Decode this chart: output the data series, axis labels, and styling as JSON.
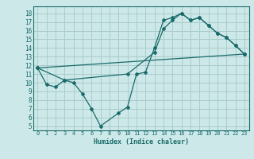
{
  "title": "",
  "xlabel": "Humidex (Indice chaleur)",
  "ylabel": "",
  "bg_color": "#cde8e8",
  "grid_color": "#aacccc",
  "line_color": "#1a6b6b",
  "xlim": [
    -0.5,
    23.5
  ],
  "ylim": [
    4.5,
    18.8
  ],
  "xticks": [
    0,
    1,
    2,
    3,
    4,
    5,
    6,
    7,
    8,
    9,
    10,
    11,
    12,
    13,
    14,
    15,
    16,
    17,
    18,
    19,
    20,
    21,
    22,
    23
  ],
  "yticks": [
    5,
    6,
    7,
    8,
    9,
    10,
    11,
    12,
    13,
    14,
    15,
    16,
    17,
    18
  ],
  "series": [
    {
      "x": [
        0,
        1,
        2,
        3,
        4,
        5,
        6,
        7,
        9,
        10,
        11,
        12,
        13,
        14,
        15,
        16,
        17,
        18,
        19,
        20,
        21,
        22,
        23
      ],
      "y": [
        11.7,
        9.8,
        9.5,
        10.3,
        10.0,
        8.7,
        7.0,
        5.0,
        6.5,
        7.2,
        11.0,
        11.2,
        14.0,
        17.2,
        17.5,
        18.0,
        17.2,
        17.5,
        16.6,
        15.7,
        15.2,
        14.3,
        13.3
      ]
    },
    {
      "x": [
        0,
        3,
        10,
        13,
        14,
        15,
        16,
        17,
        18,
        19,
        20,
        21,
        22,
        23
      ],
      "y": [
        11.7,
        10.3,
        11.0,
        13.5,
        16.2,
        17.2,
        18.0,
        17.2,
        17.5,
        16.6,
        15.7,
        15.2,
        14.3,
        13.3
      ]
    },
    {
      "x": [
        0,
        23
      ],
      "y": [
        11.7,
        13.3
      ]
    }
  ]
}
